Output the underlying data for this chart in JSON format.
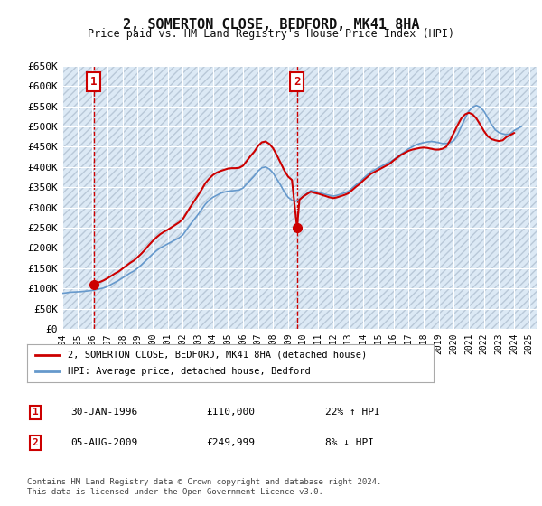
{
  "title": "2, SOMERTON CLOSE, BEDFORD, MK41 8HA",
  "subtitle": "Price paid vs. HM Land Registry's House Price Index (HPI)",
  "background_color": "#ffffff",
  "plot_bg_color": "#dce9f5",
  "hatch_color": "#b8c8d8",
  "grid_color": "#ffffff",
  "ylabel_color": "#222222",
  "sale1_date": 1996.08,
  "sale1_price": 110000,
  "sale1_label": "1",
  "sale2_date": 2009.59,
  "sale2_price": 249999,
  "sale2_label": "2",
  "xmin": 1994,
  "xmax": 2025.5,
  "ymin": 0,
  "ymax": 650000,
  "yticks": [
    0,
    50000,
    100000,
    150000,
    200000,
    250000,
    300000,
    350000,
    400000,
    450000,
    500000,
    550000,
    600000,
    650000
  ],
  "xticks": [
    1994,
    1995,
    1996,
    1997,
    1998,
    1999,
    2000,
    2001,
    2002,
    2003,
    2004,
    2005,
    2006,
    2007,
    2008,
    2009,
    2010,
    2011,
    2012,
    2013,
    2014,
    2015,
    2016,
    2017,
    2018,
    2019,
    2020,
    2021,
    2022,
    2023,
    2024,
    2025
  ],
  "line_color_property": "#cc0000",
  "line_color_hpi": "#6699cc",
  "legend_label_property": "2, SOMERTON CLOSE, BEDFORD, MK41 8HA (detached house)",
  "legend_label_hpi": "HPI: Average price, detached house, Bedford",
  "annotation1": [
    "1",
    "30-JAN-1996",
    "£110,000",
    "22% ↑ HPI"
  ],
  "annotation2": [
    "2",
    "05-AUG-2009",
    "£249,999",
    "8% ↓ HPI"
  ],
  "footer": "Contains HM Land Registry data © Crown copyright and database right 2024.\nThis data is licensed under the Open Government Licence v3.0.",
  "hpi_dates": [
    1994.0,
    1994.25,
    1994.5,
    1994.75,
    1995.0,
    1995.25,
    1995.5,
    1995.75,
    1996.0,
    1996.25,
    1996.5,
    1996.75,
    1997.0,
    1997.25,
    1997.5,
    1997.75,
    1998.0,
    1998.25,
    1998.5,
    1998.75,
    1999.0,
    1999.25,
    1999.5,
    1999.75,
    2000.0,
    2000.25,
    2000.5,
    2000.75,
    2001.0,
    2001.25,
    2001.5,
    2001.75,
    2002.0,
    2002.25,
    2002.5,
    2002.75,
    2003.0,
    2003.25,
    2003.5,
    2003.75,
    2004.0,
    2004.25,
    2004.5,
    2004.75,
    2005.0,
    2005.25,
    2005.5,
    2005.75,
    2006.0,
    2006.25,
    2006.5,
    2006.75,
    2007.0,
    2007.25,
    2007.5,
    2007.75,
    2008.0,
    2008.25,
    2008.5,
    2008.75,
    2009.0,
    2009.25,
    2009.5,
    2009.75,
    2010.0,
    2010.25,
    2010.5,
    2010.75,
    2011.0,
    2011.25,
    2011.5,
    2011.75,
    2012.0,
    2012.25,
    2012.5,
    2012.75,
    2013.0,
    2013.25,
    2013.5,
    2013.75,
    2014.0,
    2014.25,
    2014.5,
    2014.75,
    2015.0,
    2015.25,
    2015.5,
    2015.75,
    2016.0,
    2016.25,
    2016.5,
    2016.75,
    2017.0,
    2017.25,
    2017.5,
    2017.75,
    2018.0,
    2018.25,
    2018.5,
    2018.75,
    2019.0,
    2019.25,
    2019.5,
    2019.75,
    2020.0,
    2020.25,
    2020.5,
    2020.75,
    2021.0,
    2021.25,
    2021.5,
    2021.75,
    2022.0,
    2022.25,
    2022.5,
    2022.75,
    2023.0,
    2023.25,
    2023.5,
    2023.75,
    2024.0,
    2024.25,
    2024.5
  ],
  "hpi_values": [
    88000,
    89000,
    90500,
    91000,
    91500,
    92000,
    93000,
    94000,
    95000,
    97000,
    99000,
    101000,
    105000,
    110000,
    115000,
    120000,
    126000,
    132000,
    138000,
    143000,
    150000,
    158000,
    167000,
    176000,
    185000,
    193000,
    200000,
    205000,
    210000,
    215000,
    220000,
    225000,
    232000,
    245000,
    258000,
    270000,
    282000,
    295000,
    308000,
    318000,
    325000,
    330000,
    335000,
    338000,
    340000,
    341000,
    342000,
    343000,
    348000,
    358000,
    368000,
    378000,
    390000,
    398000,
    400000,
    395000,
    385000,
    370000,
    355000,
    338000,
    325000,
    318000,
    315000,
    320000,
    328000,
    335000,
    342000,
    340000,
    338000,
    335000,
    332000,
    330000,
    328000,
    330000,
    333000,
    336000,
    340000,
    348000,
    356000,
    363000,
    372000,
    380000,
    388000,
    393000,
    398000,
    403000,
    408000,
    412000,
    418000,
    425000,
    432000,
    438000,
    445000,
    450000,
    455000,
    458000,
    460000,
    462000,
    463000,
    462000,
    460000,
    458000,
    458000,
    460000,
    465000,
    480000,
    500000,
    520000,
    538000,
    548000,
    552000,
    548000,
    538000,
    522000,
    505000,
    492000,
    485000,
    482000,
    480000,
    482000,
    490000,
    495000,
    500000
  ],
  "prop_dates": [
    1994.0,
    1994.25,
    1994.5,
    1994.75,
    1995.0,
    1995.25,
    1995.5,
    1995.75,
    1996.0,
    1996.08,
    1996.25,
    1996.5,
    1996.75,
    1997.0,
    1997.25,
    1997.5,
    1997.75,
    1998.0,
    1998.25,
    1998.5,
    1998.75,
    1999.0,
    1999.25,
    1999.5,
    1999.75,
    2000.0,
    2000.25,
    2000.5,
    2000.75,
    2001.0,
    2001.25,
    2001.5,
    2001.75,
    2002.0,
    2002.25,
    2002.5,
    2002.75,
    2003.0,
    2003.25,
    2003.5,
    2003.75,
    2004.0,
    2004.25,
    2004.5,
    2004.75,
    2005.0,
    2005.25,
    2005.5,
    2005.75,
    2006.0,
    2006.25,
    2006.5,
    2006.75,
    2007.0,
    2007.25,
    2007.5,
    2007.75,
    2008.0,
    2008.25,
    2008.5,
    2008.75,
    2009.0,
    2009.25,
    2009.59,
    2009.75,
    2010.0,
    2010.25,
    2010.5,
    2010.75,
    2011.0,
    2011.25,
    2011.5,
    2011.75,
    2012.0,
    2012.25,
    2012.5,
    2012.75,
    2013.0,
    2013.25,
    2013.5,
    2013.75,
    2014.0,
    2014.25,
    2014.5,
    2014.75,
    2015.0,
    2015.25,
    2015.5,
    2015.75,
    2016.0,
    2016.25,
    2016.5,
    2016.75,
    2017.0,
    2017.25,
    2017.5,
    2017.75,
    2018.0,
    2018.25,
    2018.5,
    2018.75,
    2019.0,
    2019.25,
    2019.5,
    2019.75,
    2020.0,
    2020.25,
    2020.5,
    2020.75,
    2021.0,
    2021.25,
    2021.5,
    2021.75,
    2022.0,
    2022.25,
    2022.5,
    2022.75,
    2023.0,
    2023.25,
    2023.5,
    2023.75,
    2024.0,
    2024.25,
    2024.5
  ],
  "prop_values": [
    null,
    null,
    null,
    null,
    null,
    null,
    null,
    null,
    null,
    110000,
    113000,
    116000,
    120000,
    125000,
    131000,
    137000,
    142000,
    149000,
    156000,
    163000,
    169000,
    177000,
    186000,
    196000,
    207000,
    217000,
    226000,
    234000,
    240000,
    245000,
    251000,
    257000,
    263000,
    271000,
    286000,
    301000,
    315000,
    329000,
    344000,
    360000,
    371000,
    380000,
    386000,
    390000,
    393000,
    396000,
    397000,
    397000,
    398000,
    403000,
    415000,
    427000,
    438000,
    452000,
    461000,
    463000,
    457000,
    446000,
    429000,
    410000,
    391000,
    376000,
    368000,
    249999,
    319000,
    327000,
    333000,
    339000,
    336000,
    334000,
    331000,
    328000,
    325000,
    323000,
    325000,
    328000,
    331000,
    335000,
    343000,
    351000,
    358000,
    367000,
    375000,
    383000,
    388000,
    393000,
    398000,
    403000,
    408000,
    416000,
    423000,
    430000,
    435000,
    440000,
    443000,
    445000,
    447000,
    448000,
    447000,
    445000,
    443000,
    443000,
    445000,
    450000,
    465000,
    484000,
    503000,
    520000,
    530000,
    534000,
    530000,
    520000,
    505000,
    489000,
    476000,
    469000,
    466000,
    464000,
    466000,
    474000,
    479000,
    484000
  ]
}
